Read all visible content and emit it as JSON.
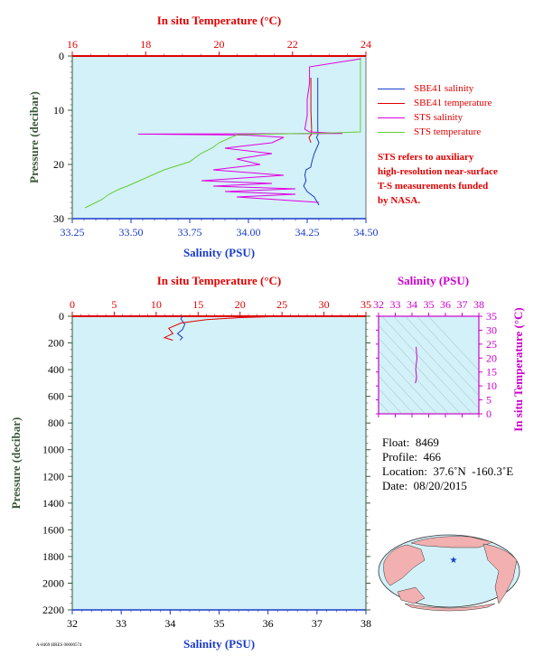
{
  "chart_data": [
    {
      "type": "line",
      "title": "In situ Temperature (°C)",
      "xlabel": "Salinity (PSU)",
      "ylabel": "Pressure (decibar)",
      "top_axis_label": "In situ Temperature (°C)",
      "x_ticks": [
        "33.25",
        "33.50",
        "33.75",
        "34.00",
        "34.25",
        "34.50"
      ],
      "x_top_ticks": [
        "16",
        "18",
        "20",
        "22",
        "24"
      ],
      "y_ticks": [
        "0",
        "10",
        "20",
        "30"
      ],
      "xlim": [
        33.25,
        34.5
      ],
      "x_top_lim": [
        16,
        24
      ],
      "ylim": [
        0,
        30
      ],
      "y_inverted": true,
      "series": [
        {
          "name": "SBE41 salinity",
          "axis": "salinity",
          "color": "#1a3cc8",
          "x": [
            34.295,
            34.295,
            34.295,
            34.296,
            34.29,
            34.3,
            34.28,
            34.27,
            34.265,
            34.245,
            34.24,
            34.245,
            34.235,
            34.25,
            34.28,
            34.3
          ],
          "y": [
            4,
            10,
            13.5,
            14.5,
            15,
            16,
            18,
            19.5,
            20.5,
            21,
            22,
            23,
            24,
            25,
            26,
            27.5
          ]
        },
        {
          "name": "SBE41 temperature",
          "axis": "temperature",
          "color": "#e00000",
          "x": [
            22.5,
            22.5,
            22.52,
            22.51,
            22.45,
            22.5
          ],
          "y": [
            4,
            10,
            13.5,
            14.5,
            15,
            16
          ]
        },
        {
          "name": "STS salinity",
          "axis": "salinity",
          "color": "#e000e0",
          "x": [
            34.48,
            34.26,
            34.26,
            34.25,
            34.25,
            34.24,
            34.26,
            34.4,
            33.53,
            34.0,
            34.15,
            34.1,
            33.9,
            34.1,
            33.95,
            34.05,
            33.85,
            34.15,
            33.8,
            34.1,
            33.85,
            34.2,
            33.9,
            34.2,
            33.95,
            34.3
          ],
          "y": [
            0.5,
            2,
            5,
            8,
            11,
            13.5,
            14,
            14.3,
            14.4,
            14.6,
            15,
            16,
            17,
            18,
            19,
            20,
            21,
            22,
            23,
            23.5,
            24,
            24.5,
            25,
            25.5,
            26,
            27
          ]
        },
        {
          "name": "STS temperature",
          "axis": "temperature",
          "color": "#66cc33",
          "x": [
            23.85,
            23.85,
            23.85,
            23.85,
            23.0,
            20.5,
            20.0,
            19.8,
            19.5,
            19.2,
            18.5,
            17.5,
            17.3,
            17.0,
            16.8,
            16.5,
            16.35
          ],
          "y": [
            0.3,
            3,
            10,
            14,
            14.2,
            14.5,
            16,
            17,
            18,
            19.5,
            21,
            24,
            24.5,
            25.5,
            26.5,
            27.5,
            28
          ]
        }
      ]
    },
    {
      "type": "line",
      "title": "In situ Temperature (°C)",
      "xlabel": "Salinity (PSU)",
      "ylabel": "Pressure (decibar)",
      "top_axis_label": "In situ Temperature (°C)",
      "x_ticks": [
        "32",
        "33",
        "34",
        "35",
        "36",
        "37",
        "38"
      ],
      "x_top_ticks": [
        "0",
        "5",
        "10",
        "15",
        "20",
        "25",
        "30",
        "35"
      ],
      "y_ticks": [
        "0",
        "200",
        "400",
        "600",
        "800",
        "1000",
        "1200",
        "1400",
        "1600",
        "1800",
        "2000",
        "2200"
      ],
      "xlim": [
        32,
        38
      ],
      "x_top_lim": [
        0,
        35
      ],
      "ylim": [
        0,
        2200
      ],
      "y_inverted": true,
      "series": [
        {
          "name": "Salinity",
          "axis": "salinity",
          "color": "#1a3cc8",
          "x": [
            34.25,
            34.22,
            34.3,
            34.25,
            34.15,
            34.25,
            34.2
          ],
          "y": [
            0,
            20,
            60,
            100,
            130,
            160,
            180
          ]
        },
        {
          "name": "Temperature",
          "axis": "temperature",
          "color": "#e00000",
          "x": [
            24.5,
            20,
            16,
            13,
            11.5,
            12,
            11,
            12
          ],
          "y": [
            2,
            10,
            25,
            50,
            90,
            130,
            160,
            180
          ]
        }
      ]
    },
    {
      "type": "scatter",
      "title": "Salinity (PSU)",
      "xlabel": "Salinity (PSU)",
      "ylabel": "In situ Temperature (°C)",
      "x_ticks": [
        "32",
        "33",
        "34",
        "35",
        "36",
        "37",
        "38"
      ],
      "y_ticks": [
        "0",
        "5",
        "10",
        "15",
        "20",
        "25",
        "30",
        "35"
      ],
      "xlim": [
        32,
        38
      ],
      "ylim": [
        0,
        35
      ],
      "series": [
        {
          "name": "T-S",
          "color": "#cc00cc",
          "x": [
            34.25,
            34.3,
            34.22,
            34.28,
            34.2,
            34.25
          ],
          "y": [
            24,
            20,
            16,
            13,
            11,
            12
          ]
        }
      ]
    }
  ],
  "legend": {
    "items": [
      {
        "label": "SBE41 salinity",
        "color": "#1a3cc8"
      },
      {
        "label": "SBE41 temperature",
        "color": "#e00000"
      },
      {
        "label": "STS salinity",
        "color": "#e000e0"
      },
      {
        "label": "STS temperature",
        "color": "#66cc33"
      }
    ],
    "note_lines": [
      "STS refers to auxiliary",
      "high-resolution near-surface",
      "T-S measurements funded",
      "by NASA."
    ]
  },
  "info": {
    "float": "Float:  8469",
    "profile": "Profile:  466",
    "location": "Location:  37.6˚N  -160.3˚E",
    "date": "Date:  08/20/2015"
  },
  "map": {
    "marker": "★",
    "marker_color": "#1a3cc8"
  },
  "footer_code": "A-8469 HRES 00000574",
  "colors": {
    "plot_bg": "#d3f1f8",
    "temperature_axis": "#e00000",
    "salinity_axis": "#1a3cc8",
    "pressure_axis": "#3a5a3a",
    "ts_axis": "#cc00cc"
  }
}
